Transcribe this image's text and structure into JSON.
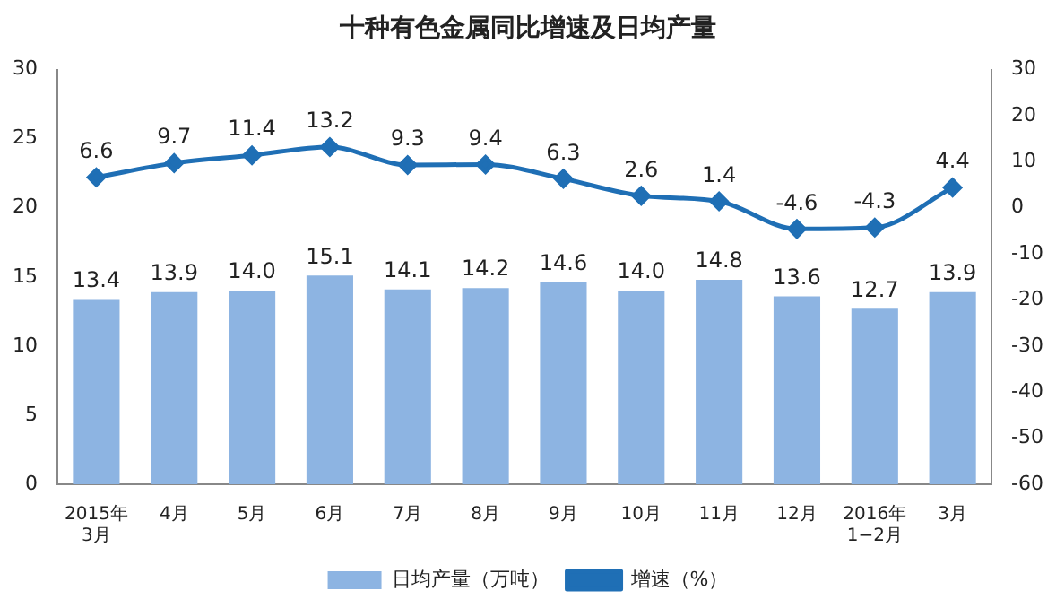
{
  "chart_data": {
    "type": "bar",
    "title": "十种有色金属同比增速及日均产量",
    "categories": [
      "2015年\n3月",
      "4月",
      "5月",
      "6月",
      "7月",
      "8月",
      "9月",
      "10月",
      "11月",
      "12月",
      "2016年\n1−2月",
      "3月"
    ],
    "series": [
      {
        "name": "日均产量（万吨）",
        "color": "#8db4e2",
        "values": [
          13.4,
          13.9,
          14.0,
          15.1,
          14.1,
          14.2,
          14.6,
          14.0,
          14.8,
          13.6,
          12.7,
          13.9
        ],
        "value_labels": [
          "13.4",
          "13.9",
          "14.0",
          "15.1",
          "14.1",
          "14.2",
          "14.6",
          "14.0",
          "14.8",
          "13.6",
          "12.7",
          "13.9"
        ]
      },
      {
        "name": "增速（%）",
        "type": "line",
        "axis": "y2",
        "color": "#1f6fb5",
        "marker": "diamond",
        "line_style": "solid",
        "values": [
          6.6,
          9.7,
          11.4,
          13.2,
          9.3,
          9.4,
          6.3,
          2.6,
          1.4,
          -4.6,
          -4.3,
          4.4
        ]
      }
    ],
    "ylim": [
      0,
      30
    ],
    "yticks": [
      0,
      5,
      10,
      15,
      20,
      25,
      30
    ],
    "y2lim": [
      -60,
      30
    ],
    "y2ticks": [
      -60,
      -50,
      -40,
      -30,
      -20,
      -10,
      0,
      10,
      20,
      30
    ],
    "data_labels": true,
    "grid": false,
    "legend": "bottom"
  }
}
